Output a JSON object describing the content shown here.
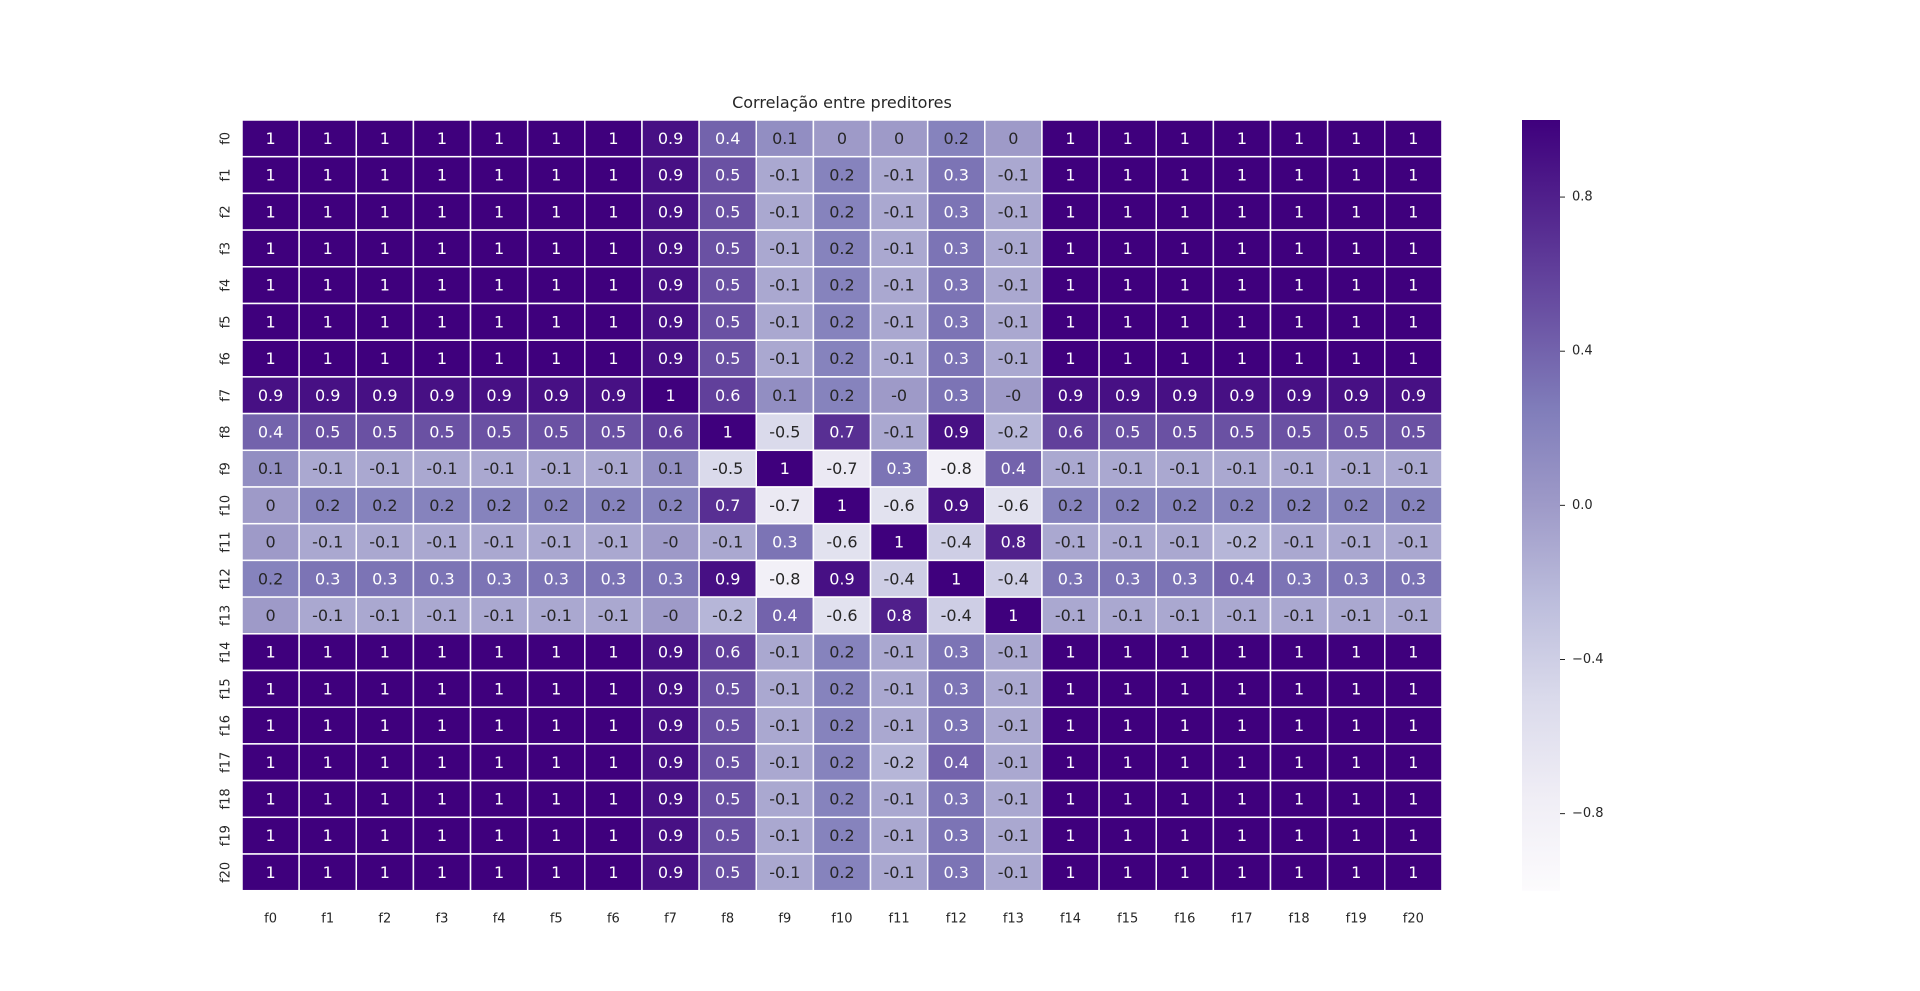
{
  "chart_data": {
    "type": "heatmap",
    "title": "Correlação entre preditores",
    "xlabel": "",
    "ylabel": "",
    "x_labels": [
      "f0",
      "f1",
      "f2",
      "f3",
      "f4",
      "f5",
      "f6",
      "f7",
      "f8",
      "f9",
      "f10",
      "f11",
      "f12",
      "f13",
      "f14",
      "f15",
      "f16",
      "f17",
      "f18",
      "f19",
      "f20"
    ],
    "y_labels": [
      "f0",
      "f1",
      "f2",
      "f3",
      "f4",
      "f5",
      "f6",
      "f7",
      "f8",
      "f9",
      "f10",
      "f11",
      "f12",
      "f13",
      "f14",
      "f15",
      "f16",
      "f17",
      "f18",
      "f19",
      "f20"
    ],
    "values": [
      [
        "1",
        "1",
        "1",
        "1",
        "1",
        "1",
        "1",
        "0.9",
        "0.4",
        "0.1",
        "0",
        "0",
        "0.2",
        "0",
        "1",
        "1",
        "1",
        "1",
        "1",
        "1",
        "1"
      ],
      [
        "1",
        "1",
        "1",
        "1",
        "1",
        "1",
        "1",
        "0.9",
        "0.5",
        "-0.1",
        "0.2",
        "-0.1",
        "0.3",
        "-0.1",
        "1",
        "1",
        "1",
        "1",
        "1",
        "1",
        "1"
      ],
      [
        "1",
        "1",
        "1",
        "1",
        "1",
        "1",
        "1",
        "0.9",
        "0.5",
        "-0.1",
        "0.2",
        "-0.1",
        "0.3",
        "-0.1",
        "1",
        "1",
        "1",
        "1",
        "1",
        "1",
        "1"
      ],
      [
        "1",
        "1",
        "1",
        "1",
        "1",
        "1",
        "1",
        "0.9",
        "0.5",
        "-0.1",
        "0.2",
        "-0.1",
        "0.3",
        "-0.1",
        "1",
        "1",
        "1",
        "1",
        "1",
        "1",
        "1"
      ],
      [
        "1",
        "1",
        "1",
        "1",
        "1",
        "1",
        "1",
        "0.9",
        "0.5",
        "-0.1",
        "0.2",
        "-0.1",
        "0.3",
        "-0.1",
        "1",
        "1",
        "1",
        "1",
        "1",
        "1",
        "1"
      ],
      [
        "1",
        "1",
        "1",
        "1",
        "1",
        "1",
        "1",
        "0.9",
        "0.5",
        "-0.1",
        "0.2",
        "-0.1",
        "0.3",
        "-0.1",
        "1",
        "1",
        "1",
        "1",
        "1",
        "1",
        "1"
      ],
      [
        "1",
        "1",
        "1",
        "1",
        "1",
        "1",
        "1",
        "0.9",
        "0.5",
        "-0.1",
        "0.2",
        "-0.1",
        "0.3",
        "-0.1",
        "1",
        "1",
        "1",
        "1",
        "1",
        "1",
        "1"
      ],
      [
        "0.9",
        "0.9",
        "0.9",
        "0.9",
        "0.9",
        "0.9",
        "0.9",
        "1",
        "0.6",
        "0.1",
        "0.2",
        "-0",
        "0.3",
        "-0",
        "0.9",
        "0.9",
        "0.9",
        "0.9",
        "0.9",
        "0.9",
        "0.9"
      ],
      [
        "0.4",
        "0.5",
        "0.5",
        "0.5",
        "0.5",
        "0.5",
        "0.5",
        "0.6",
        "1",
        "-0.5",
        "0.7",
        "-0.1",
        "0.9",
        "-0.2",
        "0.6",
        "0.5",
        "0.5",
        "0.5",
        "0.5",
        "0.5",
        "0.5"
      ],
      [
        "0.1",
        "-0.1",
        "-0.1",
        "-0.1",
        "-0.1",
        "-0.1",
        "-0.1",
        "0.1",
        "-0.5",
        "1",
        "-0.7",
        "0.3",
        "-0.8",
        "0.4",
        "-0.1",
        "-0.1",
        "-0.1",
        "-0.1",
        "-0.1",
        "-0.1",
        "-0.1"
      ],
      [
        "0",
        "0.2",
        "0.2",
        "0.2",
        "0.2",
        "0.2",
        "0.2",
        "0.2",
        "0.7",
        "-0.7",
        "1",
        "-0.6",
        "0.9",
        "-0.6",
        "0.2",
        "0.2",
        "0.2",
        "0.2",
        "0.2",
        "0.2",
        "0.2"
      ],
      [
        "0",
        "-0.1",
        "-0.1",
        "-0.1",
        "-0.1",
        "-0.1",
        "-0.1",
        "-0",
        "-0.1",
        "0.3",
        "-0.6",
        "1",
        "-0.4",
        "0.8",
        "-0.1",
        "-0.1",
        "-0.1",
        "-0.2",
        "-0.1",
        "-0.1",
        "-0.1"
      ],
      [
        "0.2",
        "0.3",
        "0.3",
        "0.3",
        "0.3",
        "0.3",
        "0.3",
        "0.3",
        "0.9",
        "-0.8",
        "0.9",
        "-0.4",
        "1",
        "-0.4",
        "0.3",
        "0.3",
        "0.3",
        "0.4",
        "0.3",
        "0.3",
        "0.3"
      ],
      [
        "0",
        "-0.1",
        "-0.1",
        "-0.1",
        "-0.1",
        "-0.1",
        "-0.1",
        "-0",
        "-0.2",
        "0.4",
        "-0.6",
        "0.8",
        "-0.4",
        "1",
        "-0.1",
        "-0.1",
        "-0.1",
        "-0.1",
        "-0.1",
        "-0.1",
        "-0.1"
      ],
      [
        "1",
        "1",
        "1",
        "1",
        "1",
        "1",
        "1",
        "0.9",
        "0.6",
        "-0.1",
        "0.2",
        "-0.1",
        "0.3",
        "-0.1",
        "1",
        "1",
        "1",
        "1",
        "1",
        "1",
        "1"
      ],
      [
        "1",
        "1",
        "1",
        "1",
        "1",
        "1",
        "1",
        "0.9",
        "0.5",
        "-0.1",
        "0.2",
        "-0.1",
        "0.3",
        "-0.1",
        "1",
        "1",
        "1",
        "1",
        "1",
        "1",
        "1"
      ],
      [
        "1",
        "1",
        "1",
        "1",
        "1",
        "1",
        "1",
        "0.9",
        "0.5",
        "-0.1",
        "0.2",
        "-0.1",
        "0.3",
        "-0.1",
        "1",
        "1",
        "1",
        "1",
        "1",
        "1",
        "1"
      ],
      [
        "1",
        "1",
        "1",
        "1",
        "1",
        "1",
        "1",
        "0.9",
        "0.5",
        "-0.1",
        "0.2",
        "-0.2",
        "0.4",
        "-0.1",
        "1",
        "1",
        "1",
        "1",
        "1",
        "1",
        "1"
      ],
      [
        "1",
        "1",
        "1",
        "1",
        "1",
        "1",
        "1",
        "0.9",
        "0.5",
        "-0.1",
        "0.2",
        "-0.1",
        "0.3",
        "-0.1",
        "1",
        "1",
        "1",
        "1",
        "1",
        "1",
        "1"
      ],
      [
        "1",
        "1",
        "1",
        "1",
        "1",
        "1",
        "1",
        "0.9",
        "0.5",
        "-0.1",
        "0.2",
        "-0.1",
        "0.3",
        "-0.1",
        "1",
        "1",
        "1",
        "1",
        "1",
        "1",
        "1"
      ],
      [
        "1",
        "1",
        "1",
        "1",
        "1",
        "1",
        "1",
        "0.9",
        "0.5",
        "-0.1",
        "0.2",
        "-0.1",
        "0.3",
        "-0.1",
        "1",
        "1",
        "1",
        "1",
        "1",
        "1",
        "1"
      ]
    ],
    "colorbar": {
      "range": [
        -1,
        1
      ],
      "ticks": [
        "0.8",
        "0.4",
        "0.0",
        "−0.4",
        "−0.8"
      ],
      "tick_values": [
        0.8,
        0.4,
        0.0,
        -0.4,
        -0.8
      ]
    },
    "colormap_stops": [
      "#fcfbfd",
      "#efedf5",
      "#dadaeb",
      "#bcbddc",
      "#9e9ac8",
      "#807dba",
      "#6a51a3",
      "#54278f",
      "#3f007d"
    ],
    "grid_line_color": "#ffffff",
    "light_text_color": "#ffffff",
    "dark_text_color": "#262626"
  }
}
